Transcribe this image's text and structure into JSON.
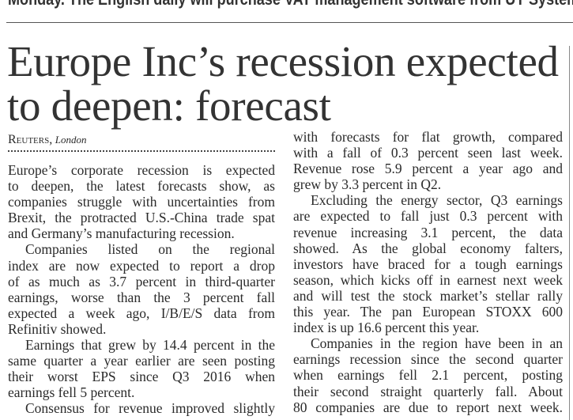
{
  "top_text": "Monday. The English daily will purchase VAT management software from UY Systems.",
  "headline": [
    "Europe Inc’s recession expected",
    "to deepen: forecast"
  ],
  "byline": {
    "agency": "Reuters,",
    "city": "London"
  },
  "columns": [
    [
      {
        "lines": [
          "Europe’s corporate recession is expected",
          "to deepen, the latest forecasts show, as",
          "companies struggle with uncertainties from",
          "Brexit, the protracted U.S.-China trade spat",
          "and Germany’s manufacturing recession."
        ],
        "indent": false,
        "ends": true
      },
      {
        "lines": [
          "Companies listed on the regional",
          "index are now expected to report a drop",
          "of as much as 3.7 percent in third-quarter",
          "earnings, worse than the 3 percent fall",
          "expected a week ago, I/B/E/S data from",
          "Refinitiv showed."
        ],
        "indent": true,
        "ends": true
      },
      {
        "lines": [
          "Earnings that grew by 14.4 percent in the",
          "same quarter a year earlier are seen posting",
          "their worst EPS since Q3 2016 when",
          "earnings fell 5 percent."
        ],
        "indent": true,
        "ends": true
      },
      {
        "lines": [
          "Consensus for revenue improved slightly"
        ],
        "indent": true,
        "ends": false
      }
    ],
    [
      {
        "lines": [
          "with forecasts for flat growth, compared",
          "with a fall of 0.3 percent seen last week.",
          "Revenue rose 5.9 percent a year ago and",
          "grew by 3.3 percent in Q2."
        ],
        "indent": false,
        "ends": true
      },
      {
        "lines": [
          "Excluding the energy sector, Q3 earnings",
          "are expected to fall just 0.3 percent with",
          "revenue increasing 3.1 percent, the data",
          "showed. As the global economy falters,",
          "investors have braced for a tough earnings",
          "season, which kicks off in earnest next week",
          "and will test the stock market’s stellar rally",
          "this year. The pan European STOXX 600",
          "index is up 16.6 percent this year."
        ],
        "indent": true,
        "ends": true
      },
      {
        "lines": [
          "Companies in the region have been in an",
          "earnings recession since the second quarter",
          "when earnings fell 2.1 percent, posting",
          "their second straight quarterly fall. About",
          "80 companies are due to report next week."
        ],
        "indent": true,
        "ends": false
      }
    ]
  ]
}
